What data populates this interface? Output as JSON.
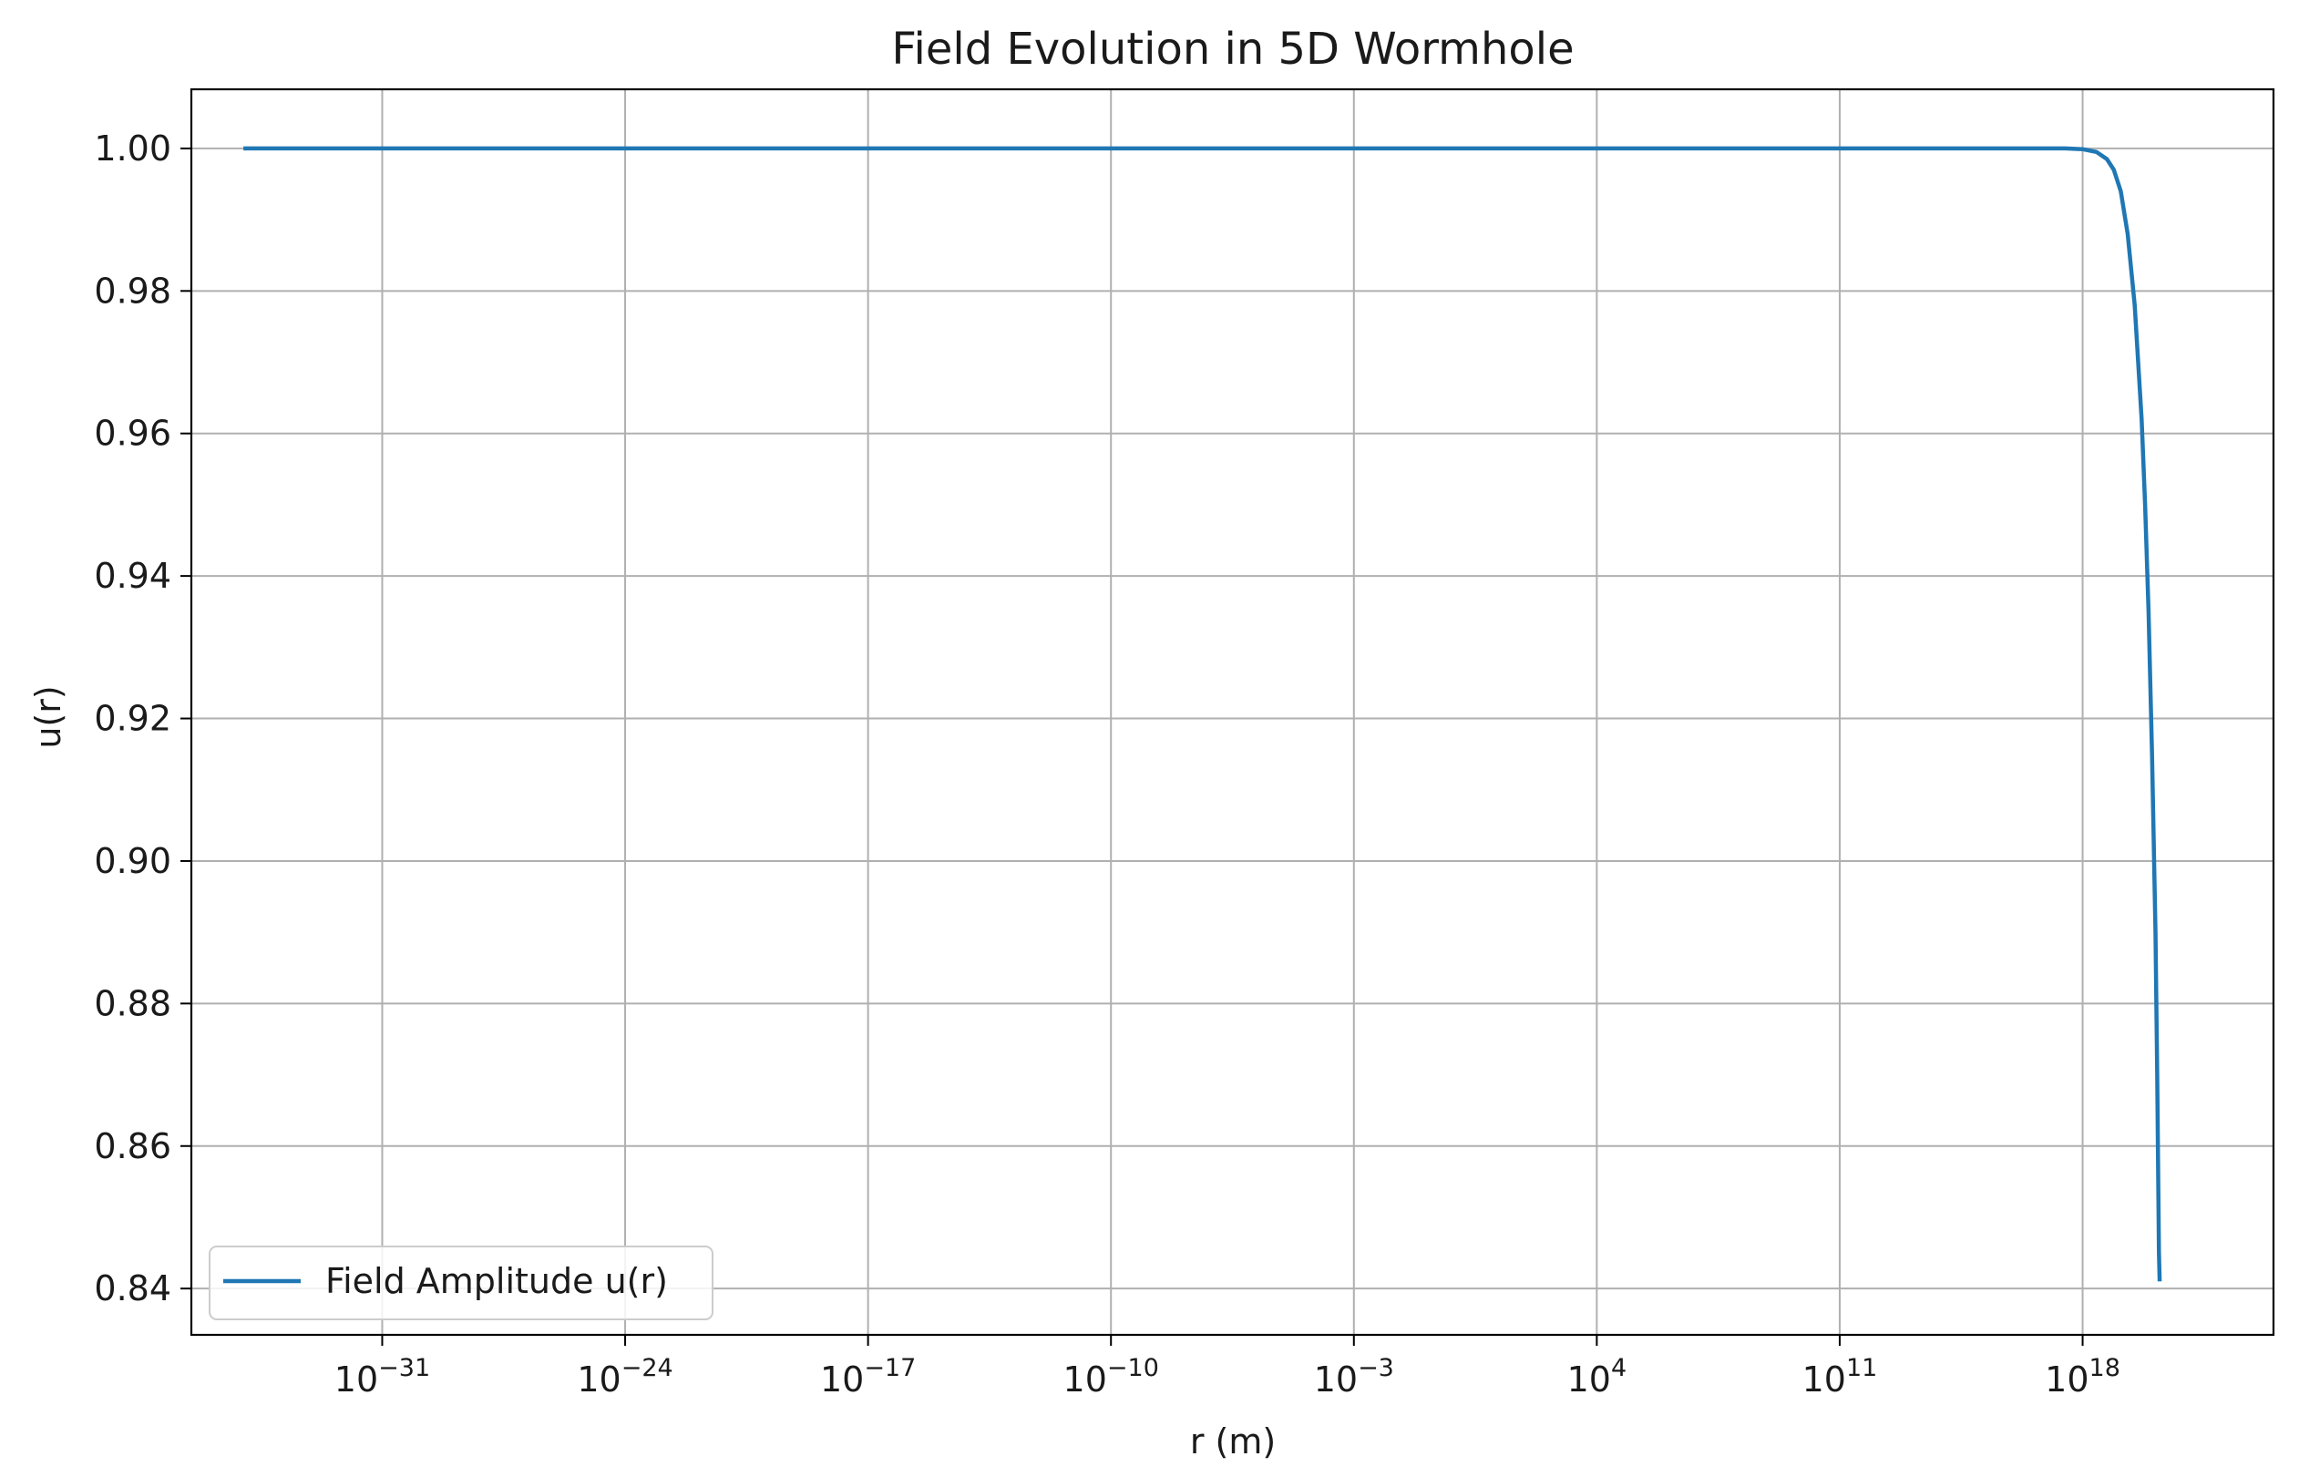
{
  "chart_data": {
    "type": "line",
    "title": "Field Evolution in 5D Wormhole",
    "xlabel": "r (m)",
    "ylabel": "u(r)",
    "x_scale": "log",
    "xlim_log10": [
      -36.5,
      23.5
    ],
    "ylim": [
      0.8335,
      1.0083
    ],
    "x_ticks": [
      {
        "base": "10",
        "exp": "−31",
        "log10": -31
      },
      {
        "base": "10",
        "exp": "−24",
        "log10": -24
      },
      {
        "base": "10",
        "exp": "−17",
        "log10": -17
      },
      {
        "base": "10",
        "exp": "−10",
        "log10": -10
      },
      {
        "base": "10",
        "exp": "−3",
        "log10": -3
      },
      {
        "base": "10",
        "exp": "4",
        "log10": 4
      },
      {
        "base": "10",
        "exp": "11",
        "log10": 11
      },
      {
        "base": "10",
        "exp": "18",
        "log10": 18
      }
    ],
    "y_ticks": [
      {
        "label": "1.00",
        "value": 1.0
      },
      {
        "label": "0.98",
        "value": 0.98
      },
      {
        "label": "0.96",
        "value": 0.96
      },
      {
        "label": "0.94",
        "value": 0.94
      },
      {
        "label": "0.92",
        "value": 0.92
      },
      {
        "label": "0.90",
        "value": 0.9
      },
      {
        "label": "0.88",
        "value": 0.88
      },
      {
        "label": "0.86",
        "value": 0.86
      },
      {
        "label": "0.84",
        "value": 0.84
      }
    ],
    "grid": true,
    "legend_position": "lower-left",
    "series": [
      {
        "name": "Field Amplitude u(r)",
        "color": "#1f77b4",
        "points_log10x_y": [
          [
            -35,
            1.0
          ],
          [
            -30,
            1.0
          ],
          [
            -20,
            1.0
          ],
          [
            -10,
            1.0
          ],
          [
            0,
            1.0
          ],
          [
            10,
            1.0
          ],
          [
            17.5,
            1.0
          ],
          [
            18.0,
            0.9999
          ],
          [
            18.4,
            0.9995
          ],
          [
            18.7,
            0.9985
          ],
          [
            18.9,
            0.997
          ],
          [
            19.1,
            0.994
          ],
          [
            19.3,
            0.988
          ],
          [
            19.5,
            0.978
          ],
          [
            19.7,
            0.962
          ],
          [
            19.8,
            0.95
          ],
          [
            19.9,
            0.935
          ],
          [
            20.0,
            0.915
          ],
          [
            20.1,
            0.89
          ],
          [
            20.15,
            0.87
          ],
          [
            20.2,
            0.845
          ],
          [
            20.22,
            0.841
          ]
        ]
      }
    ]
  }
}
